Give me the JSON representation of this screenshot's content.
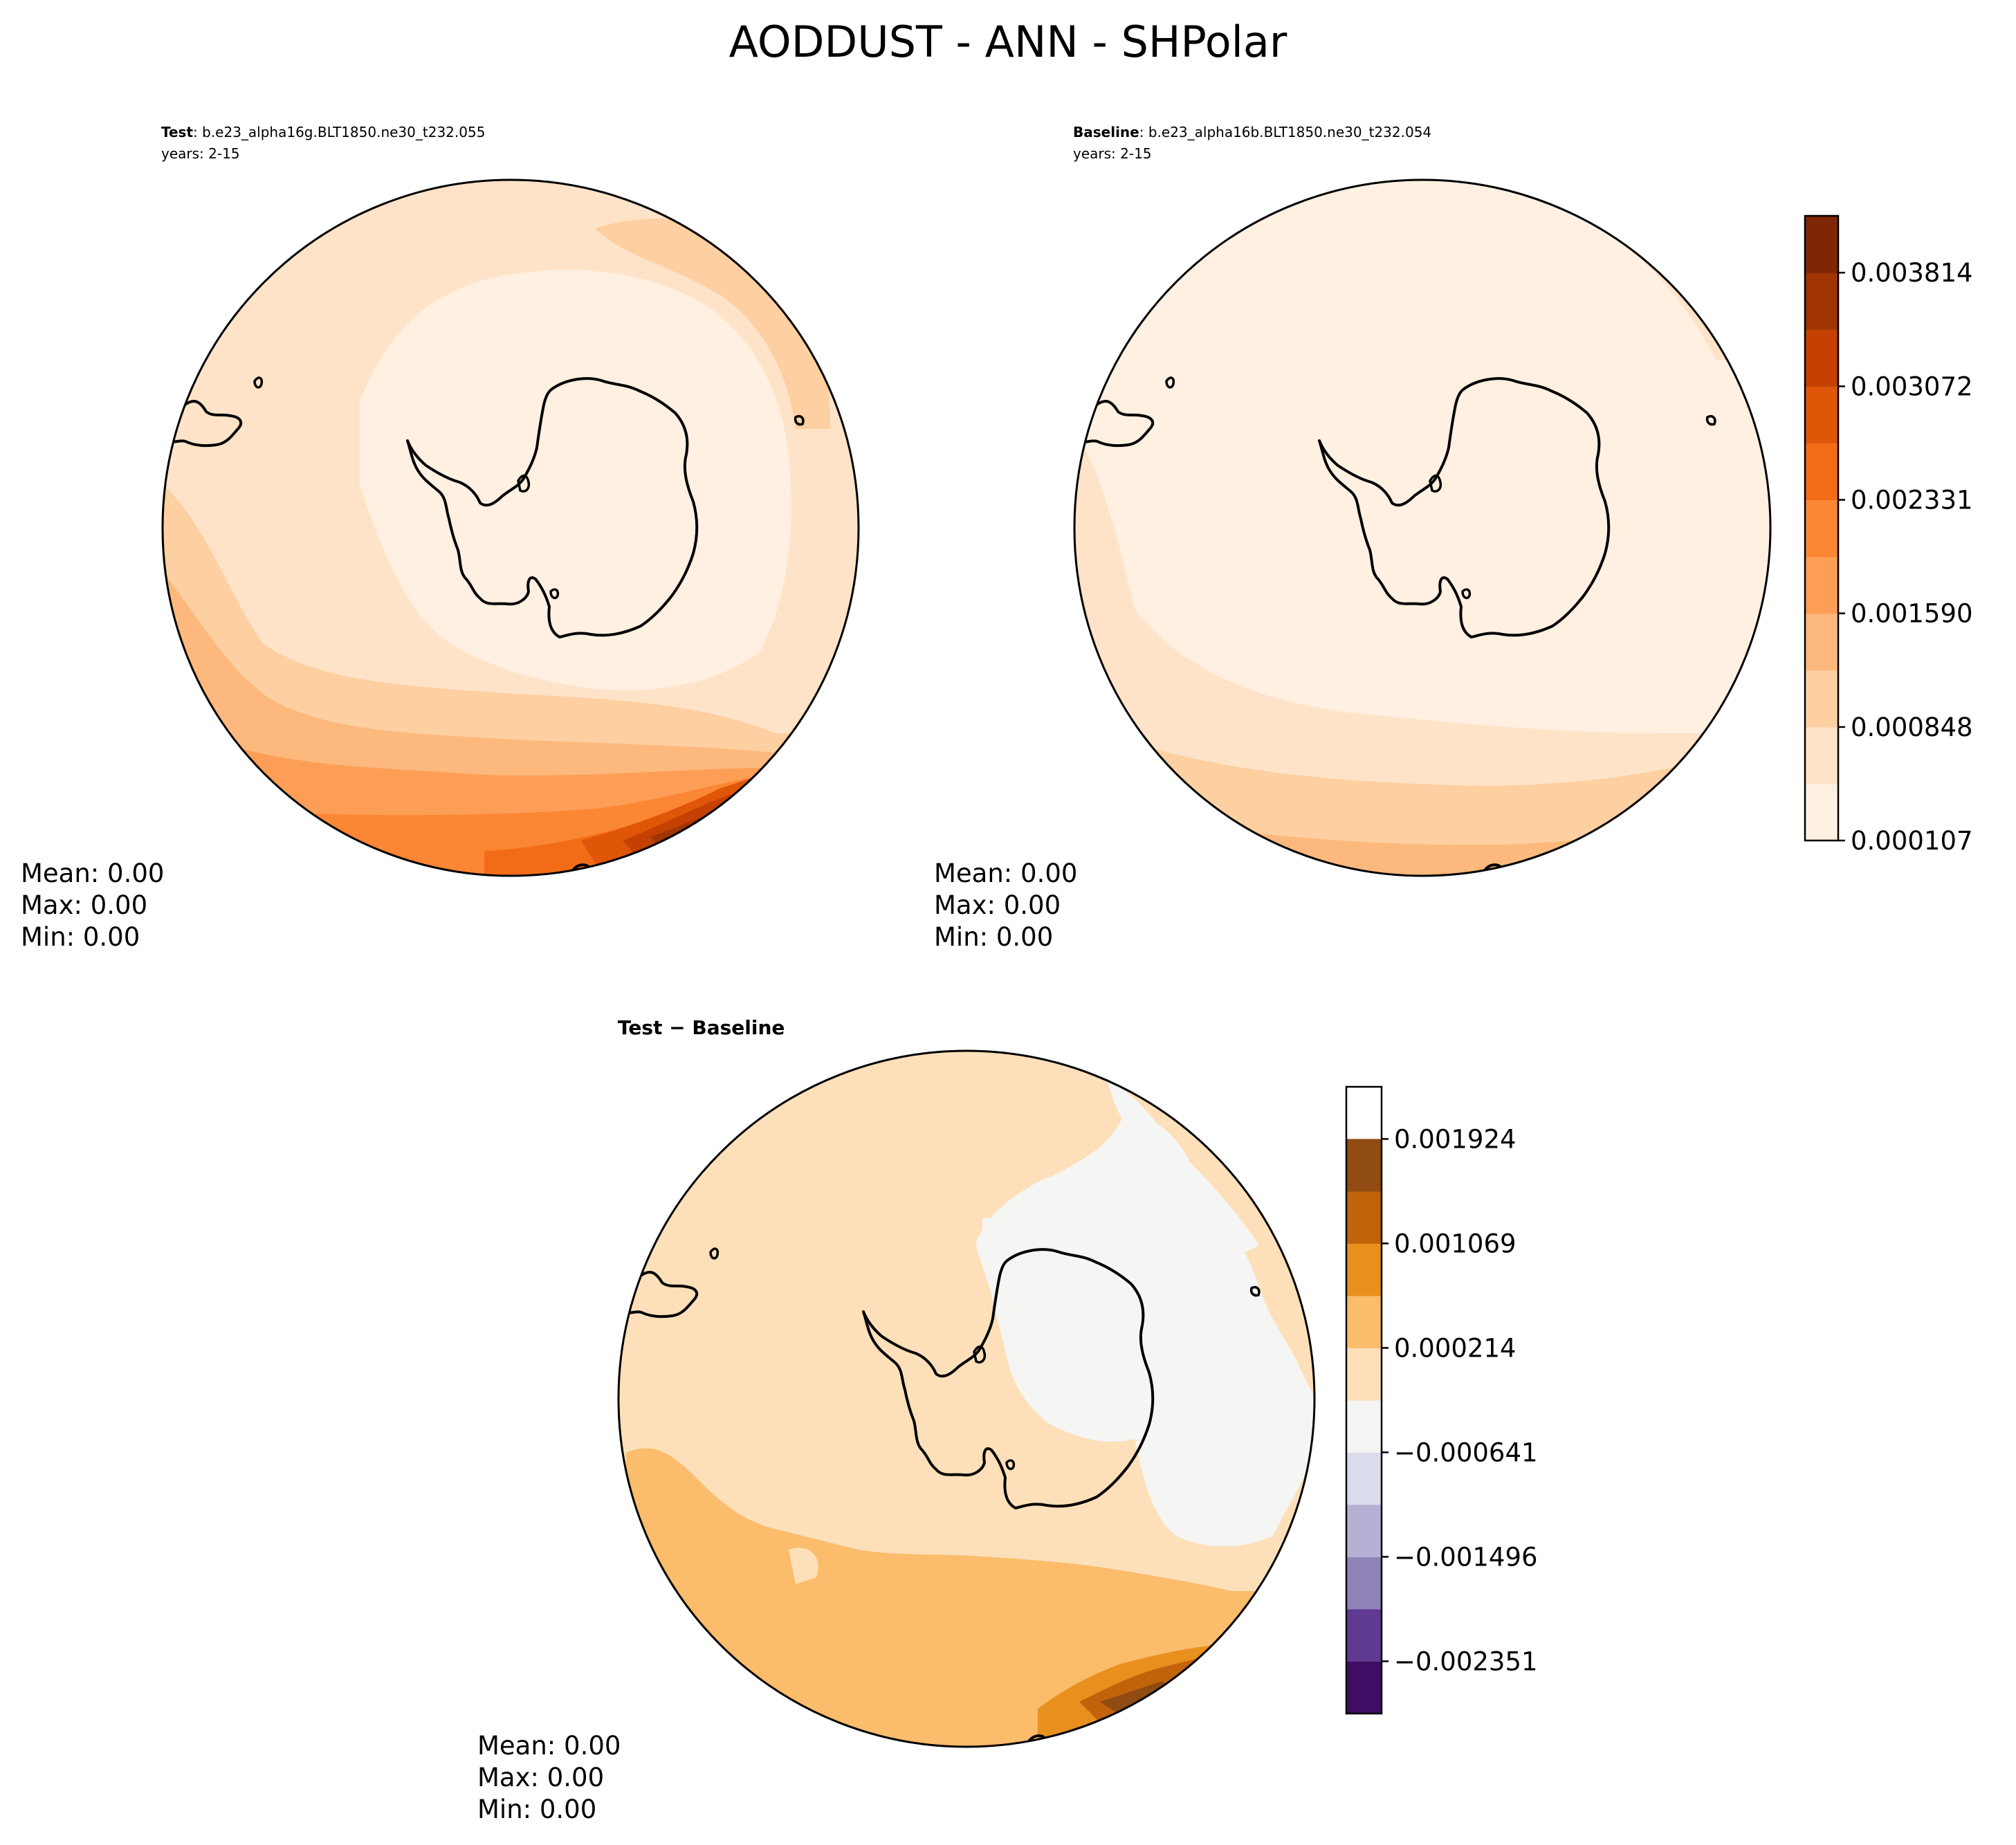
{
  "figure": {
    "title": "AODDUST - ANN - SHPolar"
  },
  "chart_data": [
    {
      "type": "heatmap",
      "projection": "south-polar-stereographic",
      "label_bold": "Test",
      "label_text": ": b.e23_alpha16g.BLT1850.ne30_t232.055",
      "years": "years: 2-15",
      "stats": {
        "mean": "Mean:  0.00",
        "max": "Max:  0.00",
        "min": "Min:  0.00"
      },
      "colorbar": "shared-abs",
      "field_description": "Dust AOD: lowest near Antarctica, increasing equatorward; highest off southern Africa / South Atlantic sector",
      "range": [
        0.000107,
        0.004185
      ]
    },
    {
      "type": "heatmap",
      "projection": "south-polar-stereographic",
      "label_bold": "Baseline",
      "label_text": ": b.e23_alpha16b.BLT1850.ne30_t232.054",
      "years": "years: 2-15",
      "stats": {
        "mean": "Mean:  0.00",
        "max": "Max:  0.00",
        "min": "Min:  0.00"
      },
      "colorbar": "shared-abs",
      "range": [
        0.000107,
        0.0015
      ]
    },
    {
      "type": "heatmap",
      "projection": "south-polar-stereographic",
      "label_bold": "Test − Baseline",
      "stats": {
        "mean": "Mean:  0.00",
        "max": "Max:  0.00",
        "min": "Min:  0.00"
      },
      "colorbar": "diff",
      "range": [
        -0.000214,
        0.0024
      ]
    }
  ],
  "colorbars": {
    "abs": {
      "levels": [
        0.000107,
        0.000478,
        0.000848,
        0.001219,
        0.00159,
        0.00196,
        0.002331,
        0.002702,
        0.003072,
        0.003443,
        0.003814,
        0.004185
      ],
      "tick_labels": [
        "0.000107",
        "0.000848",
        "0.001590",
        "0.002331",
        "0.003072",
        "0.003814"
      ],
      "tick_values": [
        0.000107,
        0.000848,
        0.00159,
        0.002331,
        0.003072,
        0.003814
      ],
      "colors": [
        "#fff0e2",
        "#fee3c8",
        "#fdcfa1",
        "#fdb97d",
        "#fd9e57",
        "#fb8634",
        "#f26c17",
        "#e05609",
        "#c54102",
        "#a03403",
        "#7f2704"
      ]
    },
    "diff": {
      "levels": [
        -0.002779,
        -0.002351,
        -0.001923,
        -0.001496,
        -0.001068,
        -0.000641,
        -0.000214,
        0.000214,
        0.000641,
        0.001069,
        0.001496,
        0.001924,
        0.002351
      ],
      "tick_labels": [
        "−0.002351",
        "−0.001496",
        "−0.000641",
        "0.000214",
        "0.001069",
        "0.001924"
      ],
      "tick_values": [
        -0.002351,
        -0.001496,
        -0.000641,
        0.000214,
        0.001069,
        0.001924
      ],
      "colors": [
        "#3f0d63",
        "#603a92",
        "#8f82b7",
        "#b6b0d4",
        "#dadbeb",
        "#f5f5f4",
        "#fde0b9",
        "#fbbc6c",
        "#e8901e",
        "#c1630b",
        "#904c12"
      ]
    }
  }
}
